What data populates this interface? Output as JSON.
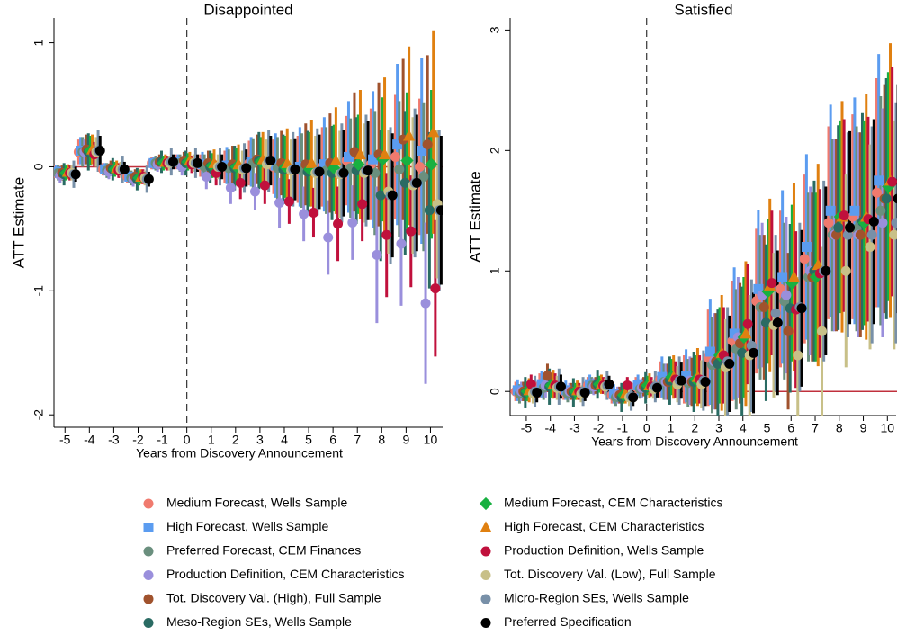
{
  "chart_data": [
    {
      "type": "errorbar",
      "title": "Disappointed",
      "xlabel": "Years from Discovery Announcement",
      "ylabel": "ATT Estimate",
      "x": [
        -5,
        -4,
        -3,
        -2,
        -1,
        0,
        1,
        2,
        3,
        4,
        5,
        6,
        7,
        8,
        9,
        10
      ],
      "xlim": [
        -5.6,
        10.5
      ],
      "ylim": [
        -2.1,
        1.2
      ],
      "yticks": [
        -2,
        -1,
        0,
        1
      ],
      "vline": 0,
      "hline": 0,
      "series": [
        {
          "name": "Medium Forecast, Wells Sample",
          "color": "#f07a6e",
          "marker": "circle",
          "values": [
            -0.04,
            0.12,
            -0.02,
            -0.08,
            0.03,
            0.04,
            0.01,
            0.0,
            0.03,
            0.0,
            -0.02,
            0.0,
            0.05,
            0.02,
            0.08,
            0.0
          ],
          "errors": [
            0.05,
            0.1,
            0.05,
            0.05,
            0.05,
            0.06,
            0.09,
            0.13,
            0.18,
            0.22,
            0.27,
            0.32,
            0.36,
            0.45,
            0.5,
            0.55
          ]
        },
        {
          "name": "High Forecast, Wells Sample",
          "color": "#5b9cf0",
          "marker": "square",
          "values": [
            -0.04,
            0.13,
            -0.02,
            -0.08,
            0.03,
            0.04,
            0.02,
            0.01,
            0.04,
            0.01,
            0.0,
            0.02,
            0.08,
            0.06,
            0.18,
            0.13
          ],
          "errors": [
            0.05,
            0.11,
            0.05,
            0.05,
            0.05,
            0.06,
            0.1,
            0.15,
            0.2,
            0.26,
            0.32,
            0.38,
            0.45,
            0.55,
            0.65,
            0.75
          ]
        },
        {
          "name": "Preferred Forecast, CEM Finances",
          "color": "#6a8f7e",
          "marker": "circle",
          "values": [
            -0.05,
            0.12,
            -0.03,
            -0.09,
            0.03,
            0.03,
            0.0,
            -0.01,
            0.03,
            -0.01,
            -0.03,
            -0.03,
            -0.01,
            -0.05,
            -0.02,
            -0.08
          ],
          "errors": [
            0.06,
            0.12,
            0.06,
            0.06,
            0.06,
            0.07,
            0.1,
            0.15,
            0.2,
            0.25,
            0.3,
            0.35,
            0.4,
            0.5,
            0.55,
            0.6
          ]
        },
        {
          "name": "Production Definition, CEM Characteristics",
          "color": "#9a8fdc",
          "marker": "circle",
          "values": [
            -0.07,
            0.12,
            -0.04,
            -0.1,
            0.02,
            0.0,
            -0.08,
            -0.17,
            -0.2,
            -0.29,
            -0.38,
            -0.57,
            -0.45,
            -0.71,
            -0.62,
            -1.1
          ],
          "errors": [
            0.06,
            0.1,
            0.06,
            0.06,
            0.06,
            0.07,
            0.1,
            0.13,
            0.15,
            0.2,
            0.22,
            0.3,
            0.3,
            0.55,
            0.5,
            0.65
          ]
        },
        {
          "name": "Tot. Discovery Val. (High), Full Sample",
          "color": "#a0522d",
          "marker": "circle",
          "values": [
            -0.05,
            0.14,
            -0.01,
            -0.08,
            0.04,
            0.05,
            0.03,
            0.02,
            0.06,
            0.03,
            0.02,
            0.03,
            0.12,
            0.1,
            0.22,
            0.18
          ],
          "errors": [
            0.06,
            0.12,
            0.06,
            0.06,
            0.06,
            0.07,
            0.1,
            0.15,
            0.2,
            0.26,
            0.33,
            0.4,
            0.48,
            0.58,
            0.65,
            0.72
          ]
        },
        {
          "name": "Meso-Region SEs, Wells Sample",
          "color": "#2a6b63",
          "marker": "circle",
          "values": [
            -0.06,
            0.12,
            -0.02,
            -0.1,
            0.04,
            0.03,
            0.0,
            -0.01,
            0.05,
            -0.02,
            -0.04,
            -0.05,
            -0.03,
            -0.23,
            -0.13,
            -0.35
          ],
          "errors": [
            0.09,
            0.15,
            0.09,
            0.09,
            0.09,
            0.1,
            0.13,
            0.18,
            0.23,
            0.28,
            0.33,
            0.38,
            0.43,
            0.53,
            0.58,
            0.63
          ]
        },
        {
          "name": "Medium Forecast, CEM Characteristics",
          "color": "#18b040",
          "marker": "diamond",
          "values": [
            -0.05,
            0.13,
            -0.02,
            -0.09,
            0.03,
            0.04,
            0.01,
            0.0,
            0.04,
            0.0,
            -0.02,
            -0.01,
            0.02,
            0.06,
            0.05,
            0.02
          ],
          "errors": [
            0.06,
            0.12,
            0.06,
            0.06,
            0.06,
            0.07,
            0.1,
            0.15,
            0.2,
            0.25,
            0.3,
            0.35,
            0.4,
            0.5,
            0.55,
            0.6
          ]
        },
        {
          "name": "High Forecast, CEM Characteristics",
          "color": "#e08010",
          "marker": "triangle",
          "values": [
            -0.04,
            0.14,
            -0.01,
            -0.08,
            0.04,
            0.05,
            0.03,
            0.02,
            0.06,
            0.03,
            0.03,
            0.05,
            0.1,
            0.1,
            0.25,
            0.28
          ],
          "errors": [
            0.06,
            0.12,
            0.06,
            0.06,
            0.06,
            0.07,
            0.11,
            0.16,
            0.22,
            0.28,
            0.35,
            0.43,
            0.52,
            0.62,
            0.72,
            0.82
          ]
        },
        {
          "name": "Production Definition, Wells Sample",
          "color": "#c0103c",
          "marker": "circle",
          "values": [
            -0.05,
            0.1,
            -0.03,
            -0.08,
            0.03,
            0.02,
            -0.05,
            -0.13,
            -0.15,
            -0.28,
            -0.37,
            -0.46,
            -0.3,
            -0.55,
            -0.52,
            -0.98
          ],
          "errors": [
            0.06,
            0.1,
            0.06,
            0.06,
            0.06,
            0.07,
            0.1,
            0.13,
            0.15,
            0.18,
            0.2,
            0.3,
            0.3,
            0.5,
            0.45,
            0.55
          ]
        },
        {
          "name": "Tot. Discovery Val. (Low), Full Sample",
          "color": "#c8c088",
          "marker": "circle",
          "values": [
            -0.05,
            0.12,
            -0.02,
            -0.09,
            0.03,
            0.03,
            0.0,
            -0.02,
            0.02,
            -0.03,
            -0.05,
            -0.06,
            -0.05,
            -0.2,
            -0.15,
            -0.3
          ],
          "errors": [
            0.06,
            0.12,
            0.06,
            0.06,
            0.06,
            0.07,
            0.1,
            0.15,
            0.2,
            0.25,
            0.3,
            0.35,
            0.4,
            0.5,
            0.55,
            0.6
          ]
        },
        {
          "name": "Micro-Region SEs, Wells Sample",
          "color": "#7890a8",
          "marker": "circle",
          "values": [
            -0.06,
            0.13,
            -0.02,
            -0.1,
            0.04,
            0.03,
            0.0,
            -0.01,
            0.05,
            -0.02,
            -0.04,
            -0.05,
            -0.03,
            -0.23,
            -0.13,
            -0.35
          ],
          "errors": [
            0.11,
            0.17,
            0.11,
            0.11,
            0.11,
            0.12,
            0.15,
            0.2,
            0.25,
            0.3,
            0.35,
            0.4,
            0.45,
            0.55,
            0.6,
            0.65
          ]
        },
        {
          "name": "Preferred Specification",
          "color": "#000000",
          "marker": "circle",
          "values": [
            -0.06,
            0.13,
            -0.02,
            -0.1,
            0.04,
            0.03,
            0.0,
            -0.01,
            0.05,
            -0.02,
            -0.04,
            -0.05,
            -0.03,
            -0.23,
            -0.13,
            -0.35
          ],
          "errors": [
            0.06,
            0.12,
            0.06,
            0.06,
            0.06,
            0.07,
            0.1,
            0.15,
            0.2,
            0.25,
            0.3,
            0.35,
            0.4,
            0.5,
            0.55,
            0.6
          ]
        }
      ]
    },
    {
      "type": "errorbar",
      "title": "Satisfied",
      "xlabel": "Years from Discovery Announcement",
      "ylabel": "ATT Estimate",
      "x": [
        -5,
        -4,
        -3,
        -2,
        -1,
        0,
        1,
        2,
        3,
        4,
        5,
        6,
        7,
        8,
        9,
        10
      ],
      "xlim": [
        -5.67,
        10.4
      ],
      "ylim": [
        -0.2,
        3.1
      ],
      "yticks": [
        0,
        1,
        2,
        3
      ],
      "vline": 0,
      "hline": 0,
      "series": [
        {
          "color": "#f07a6e",
          "marker": "circle",
          "values": [
            0.0,
            0.05,
            0.0,
            0.05,
            -0.03,
            0.04,
            0.1,
            0.1,
            0.28,
            0.42,
            0.75,
            0.85,
            1.1,
            1.4,
            1.45,
            1.65
          ],
          "errors": [
            0.08,
            0.1,
            0.07,
            0.07,
            0.07,
            0.08,
            0.15,
            0.2,
            0.4,
            0.5,
            0.6,
            0.65,
            0.7,
            0.8,
            0.85,
            0.95
          ]
        },
        {
          "color": "#5b9cf0",
          "marker": "square",
          "values": [
            0.01,
            0.06,
            0.01,
            0.06,
            -0.02,
            0.05,
            0.12,
            0.13,
            0.33,
            0.48,
            0.85,
            0.95,
            1.2,
            1.5,
            1.5,
            1.75
          ],
          "errors": [
            0.09,
            0.11,
            0.08,
            0.08,
            0.08,
            0.09,
            0.17,
            0.22,
            0.44,
            0.55,
            0.66,
            0.72,
            0.77,
            0.88,
            0.94,
            1.05
          ]
        },
        {
          "color": "#6a8f7e",
          "marker": "circle",
          "values": [
            -0.02,
            0.03,
            -0.02,
            0.05,
            -0.05,
            0.02,
            0.08,
            0.07,
            0.22,
            0.35,
            0.7,
            0.75,
            0.95,
            1.3,
            1.35,
            1.5
          ],
          "errors": [
            0.08,
            0.1,
            0.07,
            0.07,
            0.07,
            0.08,
            0.15,
            0.2,
            0.4,
            0.5,
            0.6,
            0.65,
            0.7,
            0.8,
            0.85,
            0.95
          ]
        },
        {
          "color": "#9a8fdc",
          "marker": "circle",
          "values": [
            0.0,
            0.05,
            0.0,
            0.04,
            -0.03,
            0.03,
            0.08,
            0.09,
            0.25,
            0.45,
            0.8,
            0.8,
            1.0,
            1.3,
            1.3,
            1.4
          ],
          "errors": [
            0.08,
            0.1,
            0.07,
            0.07,
            0.07,
            0.08,
            0.15,
            0.2,
            0.4,
            0.5,
            0.6,
            0.65,
            0.7,
            0.8,
            0.85,
            0.95
          ]
        },
        {
          "color": "#a0522d",
          "marker": "circle",
          "values": [
            0.0,
            0.13,
            0.0,
            0.05,
            -0.03,
            0.04,
            0.08,
            0.08,
            0.25,
            0.4,
            0.7,
            0.5,
            0.95,
            1.3,
            1.3,
            1.6
          ],
          "errors": [
            0.08,
            0.1,
            0.07,
            0.07,
            0.07,
            0.08,
            0.15,
            0.2,
            0.4,
            0.5,
            0.6,
            0.65,
            0.7,
            0.8,
            0.85,
            0.95
          ]
        },
        {
          "color": "#2a6b63",
          "marker": "circle",
          "values": [
            -0.01,
            0.04,
            -0.01,
            0.06,
            -0.05,
            0.03,
            0.09,
            0.08,
            0.23,
            0.32,
            0.57,
            0.69,
            1.0,
            1.36,
            1.41,
            1.6
          ],
          "errors": [
            0.13,
            0.15,
            0.12,
            0.12,
            0.12,
            0.13,
            0.2,
            0.25,
            0.45,
            0.55,
            0.65,
            0.7,
            0.75,
            0.85,
            0.9,
            1.0
          ]
        },
        {
          "color": "#18b040",
          "marker": "diamond",
          "values": [
            0.0,
            0.05,
            0.0,
            0.06,
            -0.03,
            0.05,
            0.12,
            0.1,
            0.3,
            0.45,
            0.83,
            0.9,
            0.95,
            1.45,
            1.4,
            1.7
          ],
          "errors": [
            0.08,
            0.1,
            0.07,
            0.07,
            0.07,
            0.08,
            0.15,
            0.2,
            0.4,
            0.5,
            0.6,
            0.65,
            0.7,
            0.8,
            0.85,
            0.95
          ]
        },
        {
          "color": "#e08010",
          "marker": "triangle",
          "values": [
            0.01,
            0.06,
            0.01,
            0.06,
            -0.02,
            0.05,
            0.12,
            0.12,
            0.32,
            0.48,
            0.88,
            0.95,
            1.05,
            1.45,
            1.45,
            1.75
          ],
          "errors": [
            0.1,
            0.12,
            0.08,
            0.08,
            0.08,
            0.1,
            0.18,
            0.24,
            0.48,
            0.6,
            0.72,
            0.78,
            0.84,
            0.96,
            1.02,
            1.14
          ]
        },
        {
          "color": "#c0103c",
          "marker": "circle",
          "values": [
            0.06,
            0.05,
            0.0,
            0.05,
            0.05,
            0.04,
            0.1,
            0.1,
            0.3,
            0.56,
            0.9,
            0.68,
            0.98,
            1.46,
            1.43,
            1.74
          ],
          "errors": [
            0.08,
            0.1,
            0.07,
            0.07,
            0.07,
            0.08,
            0.15,
            0.2,
            0.4,
            0.5,
            0.6,
            0.65,
            0.7,
            0.8,
            0.85,
            0.95
          ]
        },
        {
          "color": "#c8c088",
          "marker": "circle",
          "values": [
            -0.02,
            0.03,
            -0.02,
            0.04,
            -0.05,
            0.02,
            0.06,
            0.06,
            0.2,
            0.3,
            0.55,
            0.3,
            0.5,
            1.0,
            1.2,
            1.3
          ],
          "errors": [
            0.08,
            0.1,
            0.07,
            0.07,
            0.07,
            0.08,
            0.15,
            0.2,
            0.4,
            0.5,
            0.6,
            0.65,
            0.7,
            0.8,
            0.85,
            0.95
          ]
        },
        {
          "color": "#7890a8",
          "marker": "circle",
          "values": [
            0.0,
            0.04,
            0.0,
            0.05,
            -0.04,
            0.04,
            0.09,
            0.09,
            0.25,
            0.38,
            0.65,
            0.7,
            1.0,
            1.3,
            1.3,
            1.4
          ],
          "errors": [
            0.13,
            0.15,
            0.12,
            0.12,
            0.12,
            0.13,
            0.2,
            0.25,
            0.45,
            0.55,
            0.65,
            0.7,
            0.75,
            0.85,
            0.9,
            1.0
          ]
        },
        {
          "color": "#000000",
          "marker": "circle",
          "values": [
            -0.01,
            0.04,
            -0.01,
            0.06,
            -0.05,
            0.03,
            0.09,
            0.08,
            0.23,
            0.32,
            0.57,
            0.69,
            1.0,
            1.36,
            1.41,
            1.6
          ],
          "errors": [
            0.08,
            0.1,
            0.07,
            0.07,
            0.07,
            0.08,
            0.15,
            0.2,
            0.4,
            0.5,
            0.6,
            0.65,
            0.7,
            0.8,
            0.85,
            0.95
          ]
        }
      ]
    }
  ]
}
